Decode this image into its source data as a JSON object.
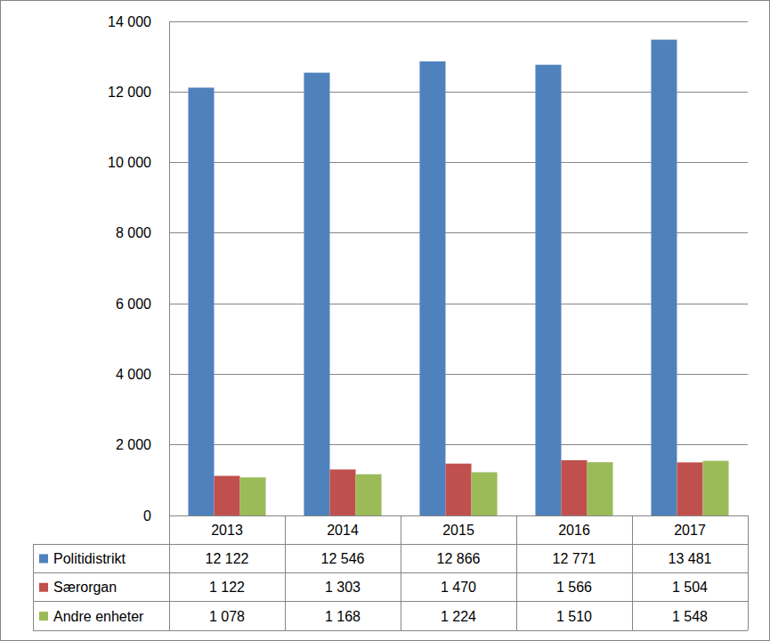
{
  "chart_data": {
    "type": "bar",
    "categories": [
      "2013",
      "2014",
      "2015",
      "2016",
      "2017"
    ],
    "series": [
      {
        "name": "Politidistrikt",
        "color": "#4f81bd",
        "values": [
          12122,
          12546,
          12866,
          12771,
          13481
        ],
        "value_labels": [
          "12 122",
          "12 546",
          "12 866",
          "12 771",
          "13 481"
        ]
      },
      {
        "name": "Særorgan",
        "color": "#c0504d",
        "values": [
          1122,
          1303,
          1470,
          1566,
          1504
        ],
        "value_labels": [
          "1 122",
          "1 303",
          "1 470",
          "1 566",
          "1 504"
        ]
      },
      {
        "name": "Andre enheter",
        "color": "#9bbb59",
        "values": [
          1078,
          1168,
          1224,
          1510,
          1548
        ],
        "value_labels": [
          "1 078",
          "1 168",
          "1 224",
          "1 510",
          "1 548"
        ]
      }
    ],
    "ylim": [
      0,
      14000
    ],
    "yticks": [
      0,
      {
        "value": 2000,
        "label": "2 000"
      },
      {
        "value": 4000,
        "label": "4 000"
      },
      {
        "value": 6000,
        "label": "6 000"
      },
      {
        "value": 8000,
        "label": "8 000"
      },
      {
        "value": 10000,
        "label": "10 000"
      },
      {
        "value": 12000,
        "label": "12 000"
      },
      {
        "value": 14000,
        "label": "14 000"
      }
    ],
    "grid": true
  }
}
